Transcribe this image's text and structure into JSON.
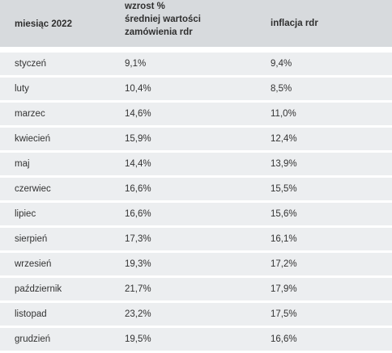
{
  "table": {
    "headers": {
      "month": "miesiąc 2022",
      "growth_lines": [
        "wzrost %",
        "średniej wartości",
        "zamówienia rdr"
      ],
      "inflation": "inflacja rdr"
    },
    "rows": [
      {
        "month": "styczeń",
        "growth": "9,1%",
        "inflation": "9,4%"
      },
      {
        "month": "luty",
        "growth": "10,4%",
        "inflation": "8,5%"
      },
      {
        "month": "marzec",
        "growth": "14,6%",
        "inflation": "11,0%"
      },
      {
        "month": "kwiecień",
        "growth": "15,9%",
        "inflation": "12,4%"
      },
      {
        "month": "maj",
        "growth": "14,4%",
        "inflation": "13,9%"
      },
      {
        "month": "czerwiec",
        "growth": "16,6%",
        "inflation": "15,5%"
      },
      {
        "month": "lipiec",
        "growth": "16,6%",
        "inflation": "15,6%"
      },
      {
        "month": "sierpień",
        "growth": "17,3%",
        "inflation": "16,1%"
      },
      {
        "month": "wrzesień",
        "growth": "19,3%",
        "inflation": "17,2%"
      },
      {
        "month": "październik",
        "growth": "21,7%",
        "inflation": "17,9%"
      },
      {
        "month": "listopad",
        "growth": "23,2%",
        "inflation": "17,5%"
      },
      {
        "month": "grudzień",
        "growth": "19,5%",
        "inflation": "16,6%"
      }
    ]
  }
}
